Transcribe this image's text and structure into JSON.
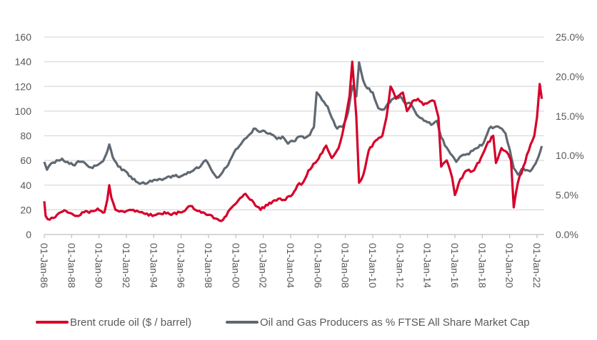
{
  "chart_data": {
    "type": "line",
    "title": "",
    "xlabel": "",
    "ylabel": "",
    "y2label": "",
    "grid": true,
    "legend_position": "bottom",
    "ylim": [
      0,
      160
    ],
    "y2lim": [
      0,
      25
    ],
    "y_ticks": [
      "0",
      "20",
      "40",
      "60",
      "80",
      "100",
      "120",
      "140",
      "160"
    ],
    "y_tick_values": [
      0,
      20,
      40,
      60,
      80,
      100,
      120,
      140,
      160
    ],
    "y2_ticks": [
      "0.0%",
      "5.0%",
      "10.0%",
      "15.0%",
      "20.0%",
      "25.0%"
    ],
    "y2_tick_values": [
      0,
      5,
      10,
      15,
      20,
      25
    ],
    "x_ticks": [
      "01-Jan-86",
      "01-Jan-88",
      "01-Jan-90",
      "01-Jan-92",
      "01-Jan-94",
      "01-Jan-96",
      "01-Jan-98",
      "01-Jan-00",
      "01-Jan-02",
      "01-Jan-04",
      "01-Jan-06",
      "01-Jan-08",
      "01-Jan-10",
      "01-Jan-12",
      "01-Jan-14",
      "01-Jan-16",
      "01-Jan-18",
      "01-Jan-20",
      "01-Jan-22"
    ],
    "x_tick_values": [
      1986,
      1988,
      1990,
      1992,
      1994,
      1996,
      1998,
      2000,
      2002,
      2004,
      2006,
      2008,
      2010,
      2012,
      2014,
      2016,
      2018,
      2020,
      2022
    ],
    "xlim": [
      1986,
      2022.4
    ],
    "series": [
      {
        "name": "Brent crude oil ($ / barrel)",
        "axis": "left",
        "color": "#d6002a",
        "x": [
          1986.0,
          1986.1,
          1986.4,
          1986.8,
          1987.2,
          1987.6,
          1988.0,
          1988.5,
          1988.9,
          1989.4,
          1989.9,
          1990.4,
          1990.6,
          1990.75,
          1990.9,
          1991.2,
          1991.6,
          1992.0,
          1992.5,
          1993.0,
          1993.5,
          1993.9,
          1994.4,
          1994.9,
          1995.4,
          1995.9,
          1996.4,
          1996.8,
          1997.2,
          1997.6,
          1998.0,
          1998.5,
          1998.95,
          1999.3,
          1999.7,
          2000.2,
          2000.7,
          2000.9,
          2001.3,
          2001.8,
          2002.2,
          2002.7,
          2003.1,
          2003.5,
          2004.0,
          2004.5,
          2004.9,
          2005.3,
          2005.8,
          2006.3,
          2006.6,
          2007.0,
          2007.5,
          2007.9,
          2008.3,
          2008.5,
          2008.8,
          2009.0,
          2009.3,
          2009.7,
          2010.2,
          2010.7,
          2011.0,
          2011.3,
          2011.7,
          2012.2,
          2012.5,
          2012.9,
          2013.3,
          2013.7,
          2014.2,
          2014.5,
          2014.8,
          2015.0,
          2015.4,
          2015.8,
          2016.0,
          2016.4,
          2016.9,
          2017.4,
          2017.9,
          2018.3,
          2018.8,
          2019.0,
          2019.4,
          2019.9,
          2020.1,
          2020.3,
          2020.6,
          2021.0,
          2021.4,
          2021.8,
          2022.0,
          2022.2,
          2022.35
        ],
        "y": [
          27,
          15,
          12,
          14,
          18,
          19,
          17,
          15,
          18,
          19,
          21,
          18,
          28,
          40,
          30,
          20,
          19,
          19,
          20,
          18,
          17,
          15,
          17,
          17,
          17,
          18,
          21,
          23,
          19,
          18,
          16,
          13,
          11,
          15,
          22,
          28,
          33,
          30,
          26,
          20,
          24,
          27,
          29,
          28,
          31,
          40,
          42,
          52,
          58,
          66,
          72,
          62,
          70,
          88,
          112,
          140,
          95,
          42,
          48,
          68,
          76,
          80,
          95,
          120,
          110,
          115,
          100,
          108,
          110,
          105,
          108,
          108,
          95,
          55,
          60,
          46,
          32,
          45,
          52,
          52,
          62,
          72,
          80,
          58,
          70,
          65,
          60,
          22,
          42,
          55,
          68,
          80,
          95,
          122,
          110
        ]
      },
      {
        "name": "Oil and Gas Producers as % FTSE All Share Market Cap",
        "axis": "right",
        "color": "#5f6872",
        "x": [
          1986.0,
          1986.2,
          1986.5,
          1986.9,
          1987.3,
          1987.7,
          1988.1,
          1988.6,
          1989.0,
          1989.4,
          1989.9,
          1990.3,
          1990.6,
          1990.75,
          1991.0,
          1991.4,
          1991.8,
          1992.2,
          1992.7,
          1993.1,
          1993.6,
          1994.0,
          1994.5,
          1995.0,
          1995.5,
          1996.0,
          1996.5,
          1997.0,
          1997.4,
          1997.8,
          1998.2,
          1998.6,
          1998.9,
          1999.3,
          1999.7,
          2000.0,
          2000.5,
          2000.9,
          2001.3,
          2001.7,
          2002.1,
          2002.5,
          2003.0,
          2003.4,
          2003.8,
          2004.2,
          2004.6,
          2005.0,
          2005.4,
          2005.7,
          2005.9,
          2006.3,
          2006.7,
          2007.0,
          2007.4,
          2007.8,
          2008.2,
          2008.5,
          2008.8,
          2009.0,
          2009.3,
          2009.6,
          2010.0,
          2010.4,
          2010.7,
          2011.0,
          2011.5,
          2012.0,
          2012.4,
          2012.8,
          2013.2,
          2013.6,
          2014.0,
          2014.4,
          2014.7,
          2015.0,
          2015.4,
          2015.8,
          2016.1,
          2016.5,
          2016.9,
          2017.3,
          2017.7,
          2018.1,
          2018.5,
          2018.9,
          2019.3,
          2019.7,
          2020.0,
          2020.3,
          2020.6,
          2021.0,
          2021.5,
          2021.9,
          2022.1,
          2022.35
        ],
        "y": [
          9.2,
          8.2,
          9.0,
          9.4,
          9.6,
          9.2,
          8.8,
          9.2,
          9.0,
          8.5,
          8.8,
          9.3,
          10.5,
          11.4,
          9.8,
          8.6,
          8.2,
          7.4,
          6.7,
          6.5,
          6.6,
          6.9,
          7.0,
          7.3,
          7.4,
          7.4,
          7.9,
          8.3,
          8.6,
          9.4,
          8.2,
          7.2,
          7.6,
          8.5,
          9.8,
          10.8,
          11.8,
          12.5,
          13.4,
          13.0,
          13.1,
          12.8,
          12.1,
          12.4,
          11.5,
          11.8,
          12.4,
          12.2,
          12.6,
          13.6,
          18.0,
          17.0,
          16.2,
          14.8,
          13.4,
          13.6,
          15.5,
          18.8,
          17.5,
          21.8,
          19.5,
          18.5,
          18.0,
          16.0,
          15.8,
          16.3,
          17.2,
          17.5,
          16.5,
          16.5,
          15.2,
          14.7,
          14.2,
          14.0,
          14.4,
          12.3,
          11.0,
          10.0,
          9.2,
          10.0,
          10.2,
          10.6,
          11.0,
          11.6,
          13.4,
          13.6,
          13.5,
          12.8,
          10.8,
          8.4,
          7.6,
          8.4,
          8.0,
          9.0,
          9.8,
          11.2
        ]
      }
    ]
  }
}
